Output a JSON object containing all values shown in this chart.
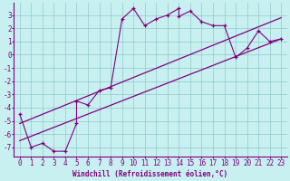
{
  "xlabel": "Windchill (Refroidissement éolien,°C)",
  "bg_color": "#c8f0f0",
  "line_color": "#800080",
  "grid_color": "#90c8cc",
  "xlim": [
    -0.5,
    23.5
  ],
  "ylim": [
    -7.7,
    3.9
  ],
  "xticks": [
    0,
    1,
    2,
    3,
    4,
    5,
    6,
    7,
    8,
    9,
    10,
    11,
    12,
    13,
    14,
    15,
    16,
    17,
    18,
    19,
    20,
    21,
    22,
    23
  ],
  "yticks": [
    3,
    2,
    1,
    0,
    -1,
    -2,
    -3,
    -4,
    -5,
    -6,
    -7
  ],
  "scatter_x": [
    0,
    1,
    2,
    3,
    4,
    5,
    5,
    6,
    7,
    8,
    9,
    10,
    11,
    12,
    13,
    14,
    14,
    15,
    16,
    17,
    18,
    19,
    20,
    21,
    22,
    23
  ],
  "scatter_y": [
    -4.5,
    -7.0,
    -6.7,
    -7.3,
    -7.3,
    -5.2,
    -3.5,
    -3.8,
    -2.7,
    -2.5,
    2.7,
    3.5,
    2.2,
    2.7,
    3.0,
    3.5,
    2.9,
    3.3,
    2.5,
    2.2,
    2.2,
    -0.2,
    0.5,
    1.8,
    1.0,
    1.2
  ],
  "line1_x": [
    0,
    23
  ],
  "line1_y": [
    -6.5,
    1.2
  ],
  "line2_x": [
    0,
    23
  ],
  "line2_y": [
    -5.2,
    2.8
  ],
  "font_size_xlabel": 5.5,
  "font_size_ticks": 5.5
}
